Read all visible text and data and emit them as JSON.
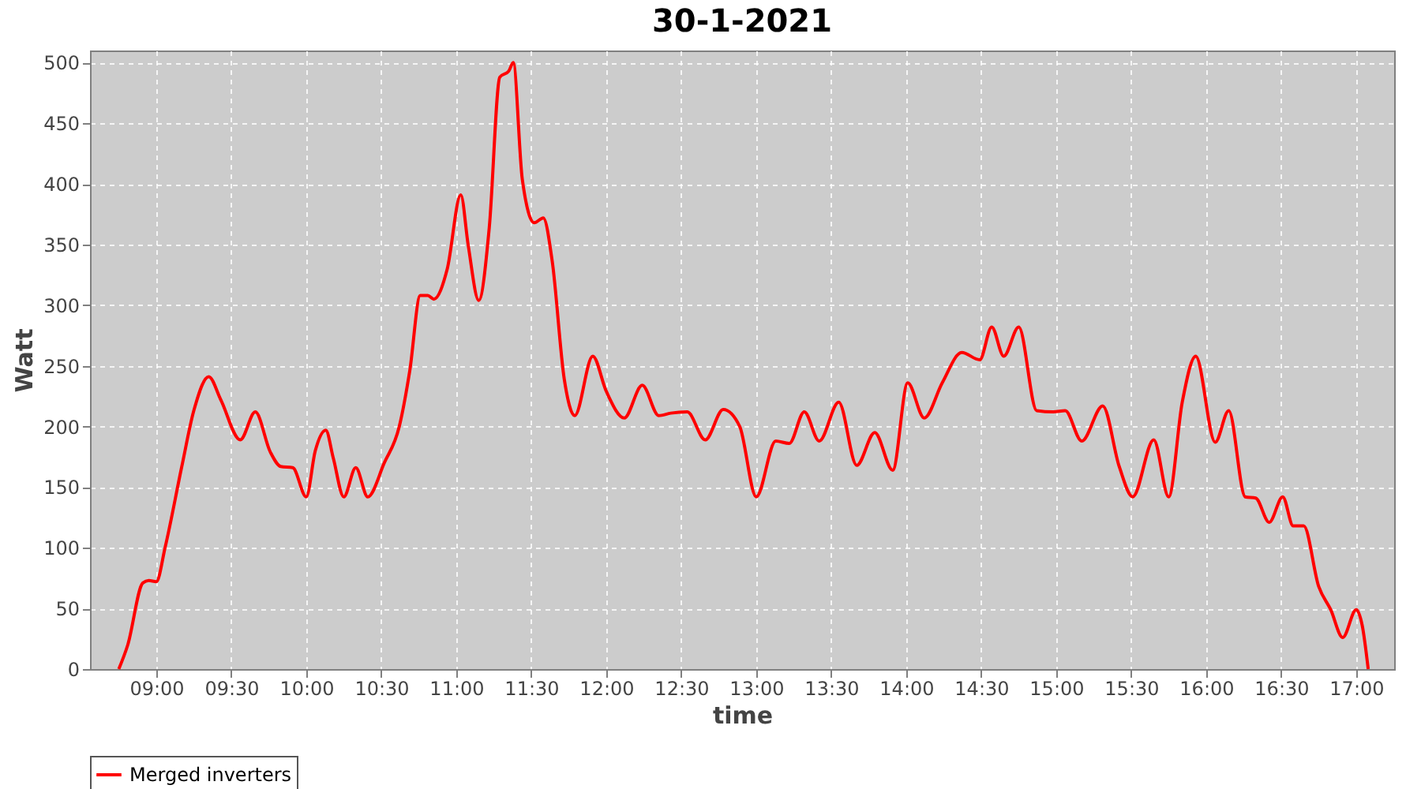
{
  "chart_data": {
    "type": "line",
    "title": "30-1-2021",
    "xlabel": "time",
    "ylabel": "Watt",
    "xlim": [
      8.558,
      17.253
    ],
    "ylim": [
      0,
      510
    ],
    "xticks": [
      {
        "value": 9,
        "label": "09:00"
      },
      {
        "value": 9.5,
        "label": "09:30"
      },
      {
        "value": 10,
        "label": "10:00"
      },
      {
        "value": 10.5,
        "label": "10:30"
      },
      {
        "value": 11,
        "label": "11:00"
      },
      {
        "value": 11.5,
        "label": "11:30"
      },
      {
        "value": 12,
        "label": "12:00"
      },
      {
        "value": 12.5,
        "label": "12:30"
      },
      {
        "value": 13,
        "label": "13:00"
      },
      {
        "value": 13.5,
        "label": "13:30"
      },
      {
        "value": 14,
        "label": "14:00"
      },
      {
        "value": 14.5,
        "label": "14:30"
      },
      {
        "value": 15,
        "label": "15:00"
      },
      {
        "value": 15.5,
        "label": "15:30"
      },
      {
        "value": 16,
        "label": "16:00"
      },
      {
        "value": 16.5,
        "label": "16:30"
      },
      {
        "value": 17,
        "label": "17:00"
      }
    ],
    "yticks": [
      0,
      50,
      100,
      150,
      200,
      250,
      300,
      350,
      400,
      450,
      500
    ],
    "grid": true,
    "legend": "bottom",
    "marker": "none",
    "line_style": "solid",
    "x": [
      8.75,
      8.81,
      8.91,
      8.95,
      9.0,
      9.06,
      9.17,
      9.25,
      9.35,
      9.43,
      9.56,
      9.66,
      9.76,
      9.83,
      9.91,
      10.0,
      10.06,
      10.13,
      10.18,
      10.25,
      10.33,
      10.41,
      10.52,
      10.62,
      10.69,
      10.76,
      10.81,
      10.85,
      10.94,
      11.03,
      11.08,
      11.15,
      11.22,
      11.29,
      11.35,
      11.38,
      11.44,
      11.52,
      11.58,
      11.64,
      11.72,
      11.79,
      11.91,
      12.0,
      12.12,
      12.24,
      12.35,
      12.43,
      12.54,
      12.66,
      12.78,
      12.89,
      13.0,
      13.13,
      13.22,
      13.32,
      13.42,
      13.55,
      13.67,
      13.79,
      13.91,
      14.01,
      14.12,
      14.24,
      14.37,
      14.49,
      14.57,
      14.65,
      14.75,
      14.87,
      14.98,
      15.06,
      15.17,
      15.31,
      15.42,
      15.51,
      15.65,
      15.75,
      15.84,
      15.93,
      16.06,
      16.15,
      16.26,
      16.33,
      16.42,
      16.51,
      16.58,
      16.65,
      16.75,
      16.83,
      16.91,
      17.0,
      17.04,
      17.08
    ],
    "series": [
      {
        "name": "Merged inverters",
        "color": "#ff0000",
        "values": [
          0,
          20,
          71,
          73,
          72,
          101,
          167,
          213,
          241,
          222,
          189,
          212,
          179,
          167,
          166,
          142,
          180,
          197,
          174,
          142,
          166,
          142,
          170,
          200,
          246,
          308,
          308,
          305,
          330,
          391,
          349,
          304,
          364,
          488,
          493,
          500,
          404,
          368,
          372,
          336,
          239,
          209,
          258,
          229,
          207,
          234,
          209,
          211,
          212,
          189,
          214,
          200,
          142,
          188,
          186,
          212,
          188,
          220,
          168,
          195,
          164,
          236,
          207,
          236,
          261,
          255,
          282,
          258,
          282,
          213,
          212,
          213,
          188,
          217,
          167,
          142,
          189,
          142,
          220,
          258,
          187,
          213,
          142,
          141,
          121,
          142,
          118,
          118,
          68,
          49,
          26,
          49,
          36,
          0
        ]
      }
    ]
  }
}
